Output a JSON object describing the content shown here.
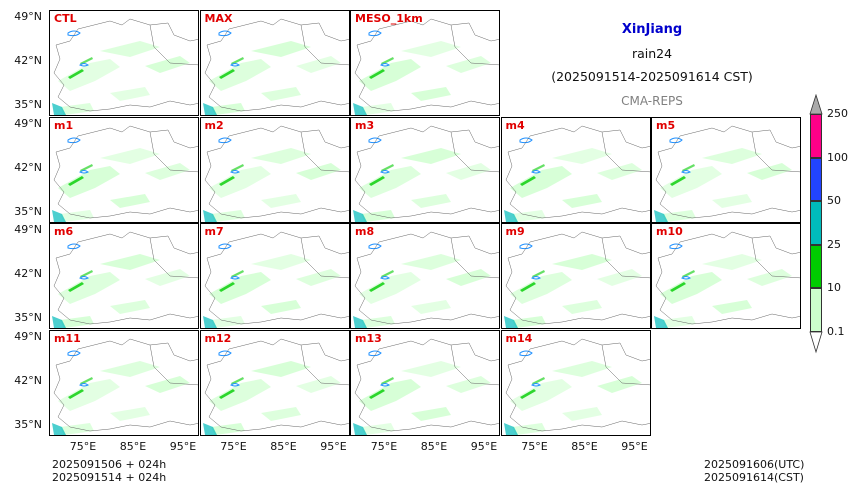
{
  "title": {
    "region": "XinJiang",
    "variable": "rain24",
    "period": "(2025091514-2025091614 CST)",
    "system": "CMA-REPS"
  },
  "panels": [
    {
      "label": "CTL",
      "row": 0,
      "col": 0
    },
    {
      "label": "MAX",
      "row": 0,
      "col": 1
    },
    {
      "label": "MESO_1km",
      "row": 0,
      "col": 2
    },
    {
      "label": "m1",
      "row": 1,
      "col": 0
    },
    {
      "label": "m2",
      "row": 1,
      "col": 1
    },
    {
      "label": "m3",
      "row": 1,
      "col": 2
    },
    {
      "label": "m4",
      "row": 1,
      "col": 3
    },
    {
      "label": "m5",
      "row": 1,
      "col": 4
    },
    {
      "label": "m6",
      "row": 2,
      "col": 0
    },
    {
      "label": "m7",
      "row": 2,
      "col": 1
    },
    {
      "label": "m8",
      "row": 2,
      "col": 2
    },
    {
      "label": "m9",
      "row": 2,
      "col": 3
    },
    {
      "label": "m10",
      "row": 2,
      "col": 4
    },
    {
      "label": "m11",
      "row": 3,
      "col": 0
    },
    {
      "label": "m12",
      "row": 3,
      "col": 1
    },
    {
      "label": "m13",
      "row": 3,
      "col": 2
    },
    {
      "label": "m14",
      "row": 3,
      "col": 3
    }
  ],
  "axes": {
    "lat_labels": [
      "49°N",
      "42°N",
      "35°N"
    ],
    "lon_labels": [
      "75°E",
      "85°E",
      "95°E"
    ]
  },
  "colorbar": {
    "levels": [
      "0.1",
      "10",
      "25",
      "50",
      "100",
      "250"
    ],
    "colors": [
      "#ccffcc",
      "#00cc00",
      "#00bbbb",
      "#2244ff",
      "#ff0088"
    ]
  },
  "footer": {
    "init_utc": "2025091506  +  024h",
    "init_cst": "2025091514  +  024h",
    "valid_utc": "2025091606(UTC)",
    "valid_cst": "2025091614(CST)"
  },
  "colors": {
    "title_accent": "#0000cc",
    "panel_label": "#e00000",
    "system_text": "#808080"
  }
}
